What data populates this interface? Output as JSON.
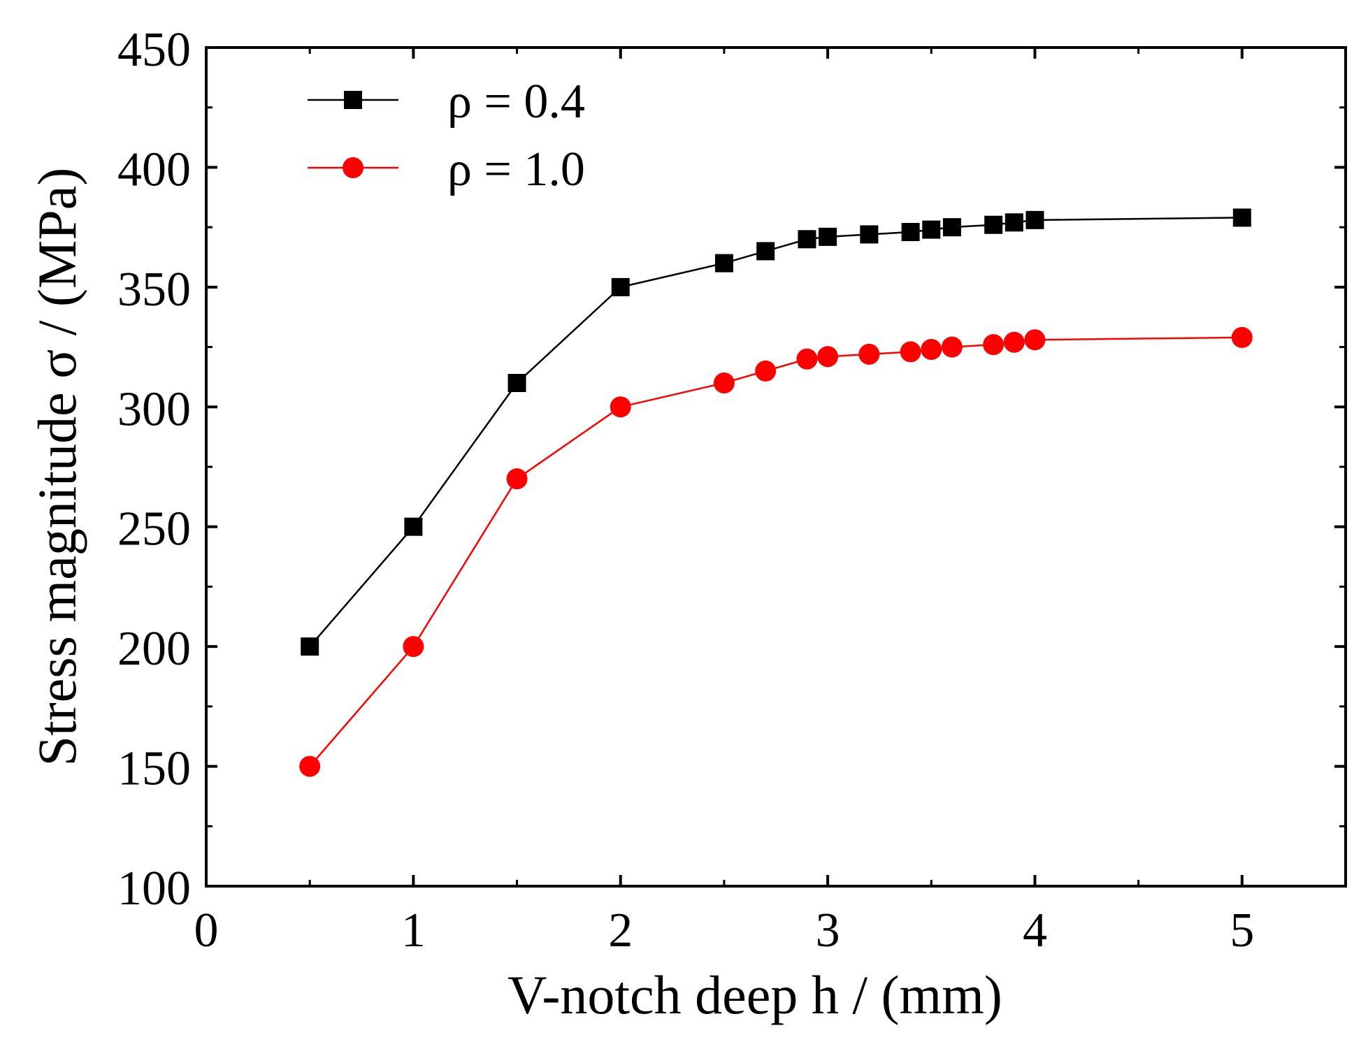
{
  "chart_data": {
    "type": "line",
    "title": "",
    "xlabel": "V-notch deep h / (mm)",
    "ylabel": "Stress magnitude σ / (MPa)",
    "xlim": [
      0,
      5.5
    ],
    "ylim": [
      100,
      450
    ],
    "xticks": [
      0,
      1,
      2,
      3,
      4,
      5
    ],
    "xtick_labels": [
      "0",
      "1",
      "2",
      "3",
      "4",
      "5"
    ],
    "yticks": [
      100,
      150,
      200,
      250,
      300,
      350,
      400,
      450
    ],
    "ytick_labels": [
      "100",
      "150",
      "200",
      "250",
      "300",
      "350",
      "400",
      "450"
    ],
    "grid": false,
    "legend_position": "top-left",
    "series": [
      {
        "name": "ρ = 0.4",
        "marker": "square",
        "color": "#000000",
        "x": [
          0.5,
          1.0,
          1.5,
          2.0,
          2.5,
          2.7,
          2.9,
          3.0,
          3.2,
          3.4,
          3.5,
          3.6,
          3.8,
          3.9,
          4.0,
          5.0
        ],
        "y": [
          200,
          250,
          310,
          350,
          360,
          365,
          370,
          371,
          372,
          373,
          374,
          375,
          376,
          377,
          378,
          379
        ]
      },
      {
        "name": "ρ = 1.0",
        "marker": "circle",
        "color": "#ff0000",
        "x": [
          0.5,
          1.0,
          1.5,
          2.0,
          2.5,
          2.7,
          2.9,
          3.0,
          3.2,
          3.4,
          3.5,
          3.6,
          3.8,
          3.9,
          4.0,
          5.0
        ],
        "y": [
          150,
          200,
          270,
          300,
          310,
          315,
          320,
          321,
          322,
          323,
          324,
          325,
          326,
          327,
          328,
          329
        ]
      }
    ]
  }
}
